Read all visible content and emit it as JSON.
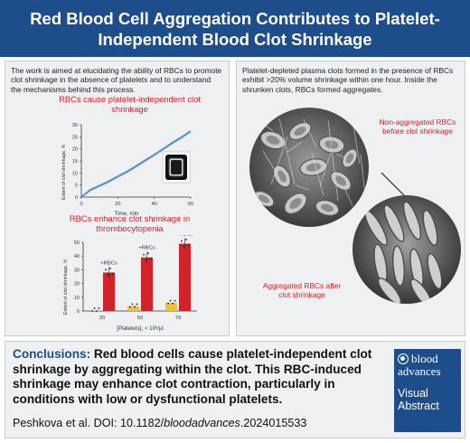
{
  "header": {
    "title": "Red Blood Cell Aggregation Contributes to Platelet-Independent Blood Clot Shrinkage"
  },
  "left_panel": {
    "intro": "The work is aimed at elucidating the ability of RBCs to promote clot shrinkage in the absence of platelets and to understand the mechanisms behind this process.",
    "chart1_title": "RBCs cause platelet-independent clot shrinkage",
    "chart2_title": "RBCs enhance clot shrinkage in thrombocytopenia"
  },
  "right_panel": {
    "intro": "Platelet-depleted plasma clots formed in the presence of RBCs exhibit >20% volume shrinkage within one hour. Inside the shrunken clots, RBCs formed aggregates.",
    "label_top": "Non-aggregated RBCs before clot shrinkage",
    "label_bottom": "Aggregated RBCs after clot shrinkage"
  },
  "conclusion": {
    "label": "Conclusions:",
    "text": " Red blood cells cause platelet-independent clot shrinkage by aggregating within the clot. This RBC-induced shrinkage may enhance clot contraction, particularly in conditions with low or dysfunctional platelets.",
    "citation_prefix": "Peshkova et al. DOI: 10.1182/",
    "citation_italic": "bloodadvances",
    "citation_suffix": ".2024015533"
  },
  "logo": {
    "line1": "blood",
    "line2": "advances",
    "line3": "Visual",
    "line4": "Abstract"
  },
  "colors": {
    "brand_blue": "#1e4d8c",
    "accent_red": "#d2232a",
    "line_blue": "#3a6ea5",
    "dot_yellow": "#f2c230"
  },
  "chart_data": [
    {
      "type": "line",
      "title": "RBCs cause platelet-independent clot shrinkage",
      "xlabel": "Time, min",
      "ylabel": "Extent of clot shrinkage, %",
      "xlim": [
        0,
        60
      ],
      "ylim": [
        0,
        30
      ],
      "xticks": [
        "0",
        "20",
        "40",
        "60"
      ],
      "yticks": [
        "0",
        "5",
        "10",
        "15",
        "20",
        "25",
        "30"
      ],
      "series": [
        {
          "x": [
            0,
            5,
            10,
            15,
            20,
            25,
            30,
            35,
            40,
            45,
            50,
            55,
            60
          ],
          "y": [
            0,
            3,
            4.7,
            6.5,
            8.5,
            10.5,
            12.8,
            15.2,
            17.5,
            20,
            22.5,
            24.8,
            27.3
          ]
        }
      ]
    },
    {
      "type": "bar",
      "title": "RBCs enhance clot shrinkage in thrombocytopenia",
      "xlabel": "[Platelets], × 10³/µl",
      "ylabel": "Extent of clot shrinkage, %",
      "ylim": [
        0,
        50
      ],
      "yticks": [
        "0",
        "10",
        "20",
        "30",
        "40",
        "50"
      ],
      "categories": [
        "20",
        "50",
        "70"
      ],
      "series": [
        {
          "values": [
            0.5,
            3.5,
            6
          ]
        },
        {
          "name": "+RBCs",
          "values": [
            28,
            39,
            49
          ]
        }
      ],
      "annotations": [
        "+RBCs",
        "+RBCs",
        "+RBCs"
      ]
    }
  ]
}
